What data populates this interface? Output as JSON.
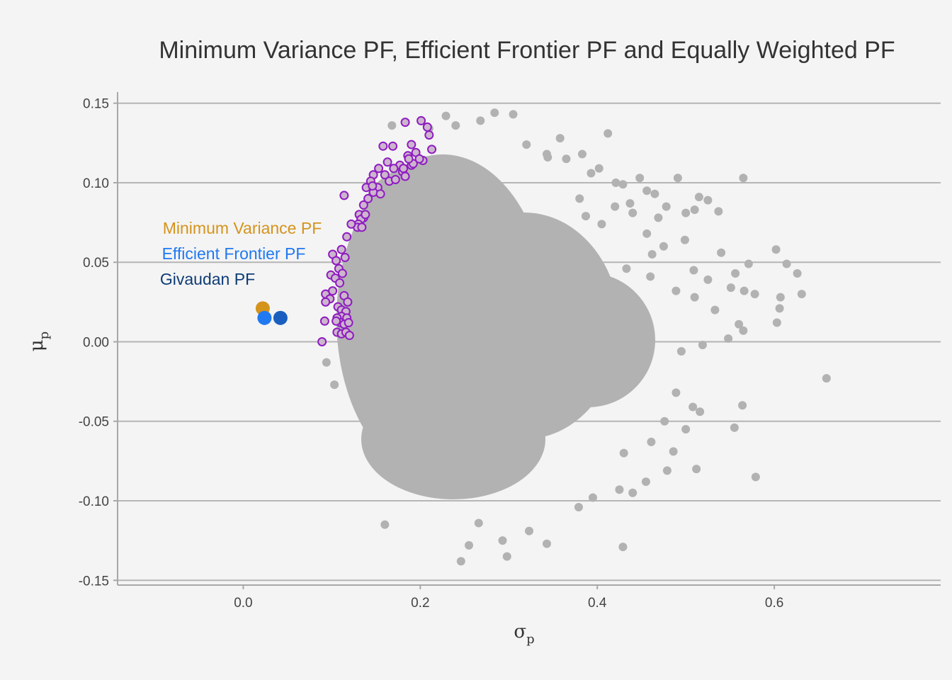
{
  "chart_data": {
    "type": "scatter",
    "title": "Minimum Variance PF, Efficient Frontier PF and Equally Weighted PF",
    "xlabel": {
      "main": "σ",
      "sub": "p"
    },
    "ylabel": {
      "main": "μ",
      "sub": "p"
    },
    "xlim": [
      -0.142,
      0.788
    ],
    "ylim": [
      -0.153,
      0.157
    ],
    "x_ticks": [
      0.0,
      0.2,
      0.4,
      0.6
    ],
    "x_tick_labels": [
      "0.0",
      "0.2",
      "0.4",
      "0.6"
    ],
    "y_ticks": [
      -0.15,
      -0.1,
      -0.05,
      0.0,
      0.05,
      0.1,
      0.15
    ],
    "y_tick_labels": [
      "-0.15",
      "-0.10",
      "-0.05",
      "0.00",
      "0.05",
      "0.10",
      "0.15"
    ],
    "grid": "horizontal",
    "colors": {
      "background": "#f4f4f4",
      "random_portfolios": "#b2b2b2",
      "frontier_fill": "#cdb5cd",
      "frontier_stroke": "#8e1cc0",
      "min_variance": "#d4941c",
      "efficient_frontier": "#2079f0",
      "givaudan": "#1a5fbf",
      "givaudan_label": "#0f3c75",
      "gridline": "#b5b5b5"
    },
    "legend_labels": [
      {
        "text": "Minimum Variance PF",
        "color": "#d4941c"
      },
      {
        "text": "Efficient Frontier PF",
        "color": "#2079f0"
      },
      {
        "text": "Givaudan PF",
        "color": "#0f3c75"
      }
    ],
    "series": [
      {
        "role": "random_portfolios",
        "points": [
          [
            0.229,
            0.142
          ],
          [
            0.284,
            0.144
          ],
          [
            0.305,
            0.143
          ],
          [
            0.358,
            0.128
          ],
          [
            0.412,
            0.131
          ],
          [
            0.383,
            0.118
          ],
          [
            0.344,
            0.116
          ],
          [
            0.402,
            0.109
          ],
          [
            0.491,
            0.103
          ],
          [
            0.565,
            0.103
          ],
          [
            0.429,
            0.099
          ],
          [
            0.456,
            0.095
          ],
          [
            0.515,
            0.091
          ],
          [
            0.525,
            0.089
          ],
          [
            0.437,
            0.087
          ],
          [
            0.478,
            0.085
          ],
          [
            0.5,
            0.081
          ],
          [
            0.387,
            0.079
          ],
          [
            0.469,
            0.078
          ],
          [
            0.51,
            0.083
          ],
          [
            0.537,
            0.082
          ],
          [
            0.405,
            0.074
          ],
          [
            0.456,
            0.068
          ],
          [
            0.499,
            0.064
          ],
          [
            0.475,
            0.06
          ],
          [
            0.54,
            0.056
          ],
          [
            0.462,
            0.055
          ],
          [
            0.571,
            0.049
          ],
          [
            0.556,
            0.043
          ],
          [
            0.602,
            0.058
          ],
          [
            0.614,
            0.049
          ],
          [
            0.626,
            0.043
          ],
          [
            0.631,
            0.03
          ],
          [
            0.607,
            0.028
          ],
          [
            0.606,
            0.021
          ],
          [
            0.603,
            0.012
          ],
          [
            0.509,
            0.045
          ],
          [
            0.525,
            0.039
          ],
          [
            0.551,
            0.034
          ],
          [
            0.566,
            0.032
          ],
          [
            0.578,
            0.03
          ],
          [
            0.433,
            0.046
          ],
          [
            0.46,
            0.041
          ],
          [
            0.489,
            0.032
          ],
          [
            0.51,
            0.028
          ],
          [
            0.533,
            0.02
          ],
          [
            0.56,
            0.011
          ],
          [
            0.565,
            0.007
          ],
          [
            0.548,
            0.002
          ],
          [
            0.519,
            -0.002
          ],
          [
            0.495,
            -0.006
          ],
          [
            0.659,
            -0.023
          ],
          [
            0.564,
            -0.04
          ],
          [
            0.555,
            -0.054
          ],
          [
            0.579,
            -0.085
          ],
          [
            0.508,
            -0.041
          ],
          [
            0.489,
            -0.032
          ],
          [
            0.516,
            -0.044
          ],
          [
            0.476,
            -0.05
          ],
          [
            0.5,
            -0.055
          ],
          [
            0.461,
            -0.063
          ],
          [
            0.486,
            -0.069
          ],
          [
            0.43,
            -0.07
          ],
          [
            0.512,
            -0.08
          ],
          [
            0.455,
            -0.088
          ],
          [
            0.44,
            -0.095
          ],
          [
            0.425,
            -0.093
          ],
          [
            0.479,
            -0.081
          ],
          [
            0.395,
            -0.098
          ],
          [
            0.429,
            -0.129
          ],
          [
            0.343,
            -0.127
          ],
          [
            0.298,
            -0.135
          ],
          [
            0.246,
            -0.138
          ],
          [
            0.255,
            -0.128
          ],
          [
            0.293,
            -0.125
          ],
          [
            0.323,
            -0.119
          ],
          [
            0.266,
            -0.114
          ],
          [
            0.16,
            -0.115
          ],
          [
            0.379,
            -0.104
          ],
          [
            0.103,
            -0.027
          ],
          [
            0.094,
            -0.013
          ],
          [
            0.168,
            0.136
          ],
          [
            0.21,
            0.134
          ],
          [
            0.24,
            0.136
          ],
          [
            0.268,
            0.139
          ],
          [
            0.32,
            0.124
          ],
          [
            0.343,
            0.118
          ],
          [
            0.365,
            0.115
          ],
          [
            0.393,
            0.106
          ],
          [
            0.421,
            0.1
          ],
          [
            0.448,
            0.103
          ],
          [
            0.465,
            0.093
          ],
          [
            0.42,
            0.085
          ],
          [
            0.44,
            0.081
          ],
          [
            0.38,
            0.09
          ]
        ]
      },
      {
        "role": "efficient_frontier_points",
        "points": [
          [
            0.183,
            0.138
          ],
          [
            0.201,
            0.139
          ],
          [
            0.208,
            0.135
          ],
          [
            0.19,
            0.124
          ],
          [
            0.169,
            0.123
          ],
          [
            0.21,
            0.13
          ],
          [
            0.186,
            0.117
          ],
          [
            0.195,
            0.119
          ],
          [
            0.177,
            0.111
          ],
          [
            0.19,
            0.111
          ],
          [
            0.203,
            0.114
          ],
          [
            0.213,
            0.121
          ],
          [
            0.158,
            0.123
          ],
          [
            0.163,
            0.113
          ],
          [
            0.17,
            0.109
          ],
          [
            0.18,
            0.107
          ],
          [
            0.192,
            0.112
          ],
          [
            0.199,
            0.115
          ],
          [
            0.153,
            0.109
          ],
          [
            0.16,
            0.105
          ],
          [
            0.165,
            0.101
          ],
          [
            0.172,
            0.102
          ],
          [
            0.183,
            0.104
          ],
          [
            0.152,
            0.097
          ],
          [
            0.147,
            0.094
          ],
          [
            0.155,
            0.093
          ],
          [
            0.139,
            0.097
          ],
          [
            0.114,
            0.092
          ],
          [
            0.136,
            0.086
          ],
          [
            0.141,
            0.09
          ],
          [
            0.131,
            0.08
          ],
          [
            0.136,
            0.078
          ],
          [
            0.133,
            0.077
          ],
          [
            0.138,
            0.08
          ],
          [
            0.13,
            0.074
          ],
          [
            0.129,
            0.072
          ],
          [
            0.134,
            0.072
          ],
          [
            0.122,
            0.074
          ],
          [
            0.117,
            0.066
          ],
          [
            0.111,
            0.058
          ],
          [
            0.101,
            0.055
          ],
          [
            0.105,
            0.051
          ],
          [
            0.115,
            0.053
          ],
          [
            0.108,
            0.046
          ],
          [
            0.112,
            0.043
          ],
          [
            0.099,
            0.042
          ],
          [
            0.104,
            0.04
          ],
          [
            0.109,
            0.037
          ],
          [
            0.093,
            0.03
          ],
          [
            0.101,
            0.032
          ],
          [
            0.098,
            0.027
          ],
          [
            0.093,
            0.025
          ],
          [
            0.114,
            0.029
          ],
          [
            0.107,
            0.022
          ],
          [
            0.111,
            0.02
          ],
          [
            0.116,
            0.019
          ],
          [
            0.111,
            0.016
          ],
          [
            0.106,
            0.015
          ],
          [
            0.117,
            0.015
          ],
          [
            0.11,
            0.012
          ],
          [
            0.114,
            0.011
          ],
          [
            0.119,
            0.012
          ],
          [
            0.105,
            0.013
          ],
          [
            0.106,
            0.006
          ],
          [
            0.111,
            0.005
          ],
          [
            0.116,
            0.006
          ],
          [
            0.12,
            0.004
          ],
          [
            0.092,
            0.013
          ],
          [
            0.089,
            0.0
          ],
          [
            0.118,
            0.025
          ],
          [
            0.147,
            0.105
          ],
          [
            0.144,
            0.101
          ],
          [
            0.181,
            0.109
          ],
          [
            0.187,
            0.115
          ],
          [
            0.146,
            0.098
          ]
        ]
      },
      {
        "role": "min_variance",
        "points": [
          [
            0.022,
            0.021
          ]
        ]
      },
      {
        "role": "efficient_frontier",
        "points": [
          [
            0.024,
            0.015
          ]
        ]
      },
      {
        "role": "givaudan",
        "points": [
          [
            0.042,
            0.015
          ]
        ]
      }
    ]
  }
}
